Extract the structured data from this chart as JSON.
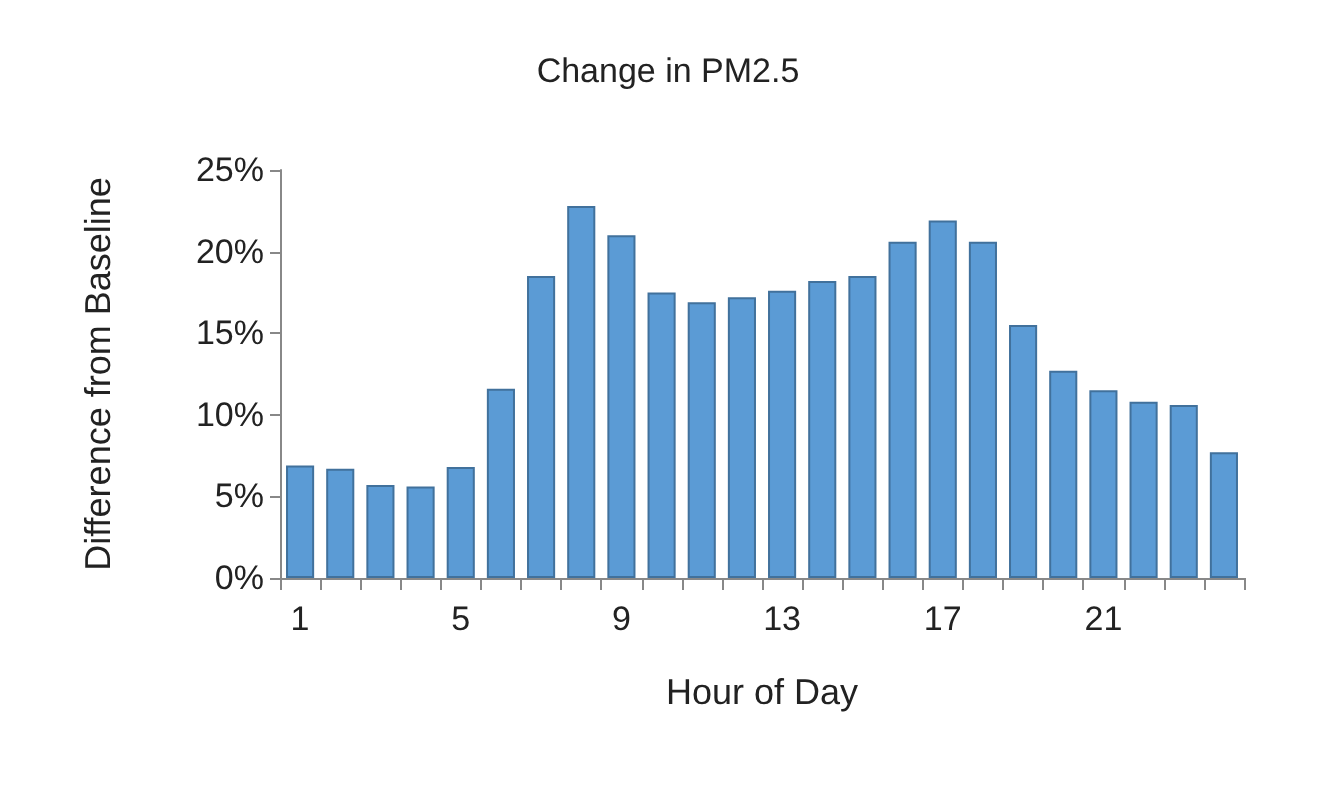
{
  "chart_data": {
    "type": "bar",
    "title": "Change in PM2.5",
    "xlabel": "Hour of Day",
    "ylabel": "Difference from Baseline",
    "categories": [
      "1",
      null,
      null,
      null,
      "5",
      null,
      null,
      null,
      "9",
      null,
      null,
      null,
      "13",
      null,
      null,
      null,
      "17",
      null,
      null,
      null,
      "21",
      null,
      null,
      null
    ],
    "values": [
      6.9,
      6.7,
      5.7,
      5.6,
      6.8,
      11.6,
      18.5,
      22.8,
      21.0,
      17.5,
      16.9,
      17.2,
      17.6,
      18.2,
      18.5,
      20.6,
      21.9,
      20.6,
      15.5,
      12.7,
      11.5,
      10.8,
      10.6,
      7.7
    ],
    "color": "#5b9bd5",
    "ylim": [
      0,
      25
    ],
    "yticks": [
      {
        "value": 0,
        "label": "0%"
      },
      {
        "value": 5,
        "label": "5%"
      },
      {
        "value": 10,
        "label": "10%"
      },
      {
        "value": 15,
        "label": "15%"
      },
      {
        "value": 20,
        "label": "20%"
      },
      {
        "value": 25,
        "label": "25%"
      }
    ],
    "grid": false
  }
}
